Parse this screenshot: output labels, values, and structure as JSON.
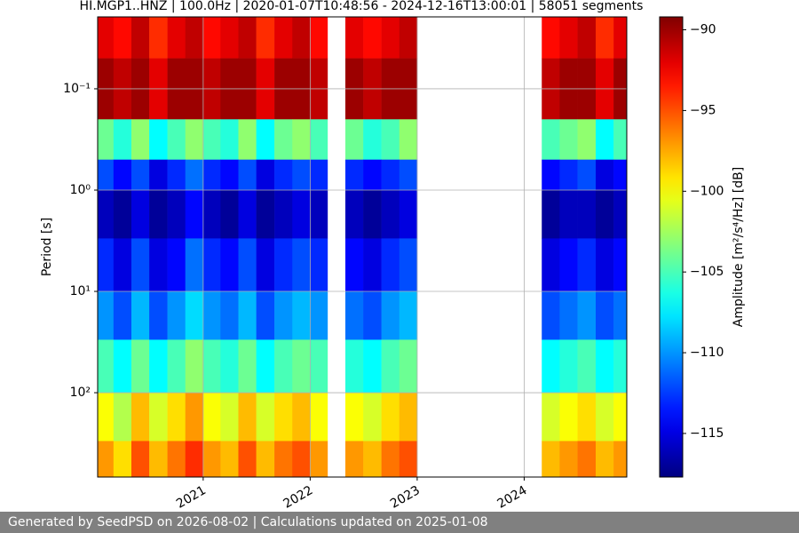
{
  "chart_data": {
    "type": "heatmap",
    "title": "HI.MGP1..HNZ | 100.0Hz | 2020-01-07T10:48:56 - 2024-12-16T13:00:01 | 58051 segments",
    "y_label": "Period [s]",
    "colorbar_label": "Amplitude [m²/s⁴/Hz] [dB]",
    "colormap": "jet",
    "yscale": "log",
    "grid": true,
    "xlim": [
      "2020-01-07",
      "2024-12-16"
    ],
    "xticks": [
      "2021",
      "2022",
      "2023",
      "2024"
    ],
    "ylim": [
      680,
      0.0195
    ],
    "yticks": [
      {
        "value": 0.1,
        "label": "10⁻¹"
      },
      {
        "value": 1,
        "label": "10⁰"
      },
      {
        "value": 10,
        "label": "10¹"
      },
      {
        "value": 100,
        "label": "10²"
      }
    ],
    "zlim": [
      -117.7,
      -89.2
    ],
    "zticks": [
      {
        "value": -90,
        "label": "−90"
      },
      {
        "value": -95,
        "label": "−95"
      },
      {
        "value": -100,
        "label": "−100"
      },
      {
        "value": -105,
        "label": "−105"
      },
      {
        "value": -110,
        "label": "−110"
      },
      {
        "value": -115,
        "label": "−115"
      }
    ],
    "x": [
      "2020-01",
      "2020-03",
      "2020-05",
      "2020-07",
      "2020-09",
      "2020-11",
      "2021-01",
      "2021-03",
      "2021-05",
      "2021-07",
      "2021-09",
      "2021-11",
      "2022-01",
      "2022-03",
      "2022-05",
      "2022-07",
      "2022-09",
      "2022-11",
      "2023-01",
      "2023-03",
      "2023-05",
      "2023-07",
      "2023-09",
      "2023-11",
      "2024-01",
      "2024-03",
      "2024-05",
      "2024-07",
      "2024-09",
      "2024-11",
      "2025-01"
    ],
    "y": [
      0.0195,
      0.05,
      0.2,
      0.5,
      1,
      3,
      10,
      30,
      100,
      300,
      680
    ],
    "z": [
      [
        -92,
        -93,
        -91,
        -94,
        -92,
        -91,
        -93,
        -92,
        -91,
        -94,
        -92,
        -91,
        -93,
        null,
        -92,
        -93,
        -92,
        -91,
        null,
        null,
        null,
        null,
        null,
        null,
        null,
        -93,
        -92,
        -91,
        -94,
        -92
      ],
      [
        -90,
        -91,
        -90,
        -92,
        -90,
        -90,
        -91,
        -90,
        -90,
        -92,
        -90,
        -90,
        -91,
        null,
        -90,
        -91,
        -90,
        -90,
        null,
        null,
        null,
        null,
        null,
        null,
        null,
        -91,
        -90,
        -90,
        -92,
        -90
      ],
      [
        -104,
        -106,
        -103,
        -107,
        -105,
        -103,
        -105,
        -106,
        -103,
        -107,
        -104,
        -103,
        -105,
        null,
        -104,
        -106,
        -105,
        -103,
        null,
        null,
        null,
        null,
        null,
        null,
        null,
        -105,
        -104,
        -103,
        -107,
        -105
      ],
      [
        -112,
        -114,
        -112,
        -115,
        -113,
        -111,
        -113,
        -114,
        -112,
        -115,
        -113,
        -112,
        -113,
        null,
        -113,
        -114,
        -113,
        -112,
        null,
        null,
        null,
        null,
        null,
        null,
        null,
        -114,
        -113,
        -112,
        -115,
        -114
      ],
      [
        -116,
        -117,
        -115,
        -117,
        -116,
        -114,
        -116,
        -117,
        -115,
        -117,
        -116,
        -115,
        -116,
        null,
        -116,
        -117,
        -116,
        -115,
        null,
        null,
        null,
        null,
        null,
        null,
        null,
        -117,
        -116,
        -116,
        -117,
        -116
      ],
      [
        -113,
        -115,
        -112,
        -115,
        -114,
        -111,
        -113,
        -114,
        -112,
        -115,
        -113,
        -112,
        -113,
        null,
        -114,
        -115,
        -113,
        -112,
        null,
        null,
        null,
        null,
        null,
        null,
        null,
        -115,
        -114,
        -113,
        -115,
        -114
      ],
      [
        -110,
        -112,
        -109,
        -112,
        -110,
        -108,
        -110,
        -111,
        -109,
        -112,
        -110,
        -109,
        -110,
        null,
        -111,
        -112,
        -110,
        -109,
        null,
        null,
        null,
        null,
        null,
        null,
        null,
        -112,
        -111,
        -110,
        -112,
        -111
      ],
      [
        -105,
        -107,
        -104,
        -107,
        -105,
        -103,
        -105,
        -106,
        -104,
        -107,
        -105,
        -104,
        -105,
        null,
        -106,
        -107,
        -105,
        -104,
        null,
        null,
        null,
        null,
        null,
        null,
        null,
        -107,
        -106,
        -105,
        -107,
        -106
      ],
      [
        -100,
        -102,
        -98,
        -101,
        -99,
        -97,
        -100,
        -101,
        -98,
        -101,
        -99,
        -98,
        -100,
        null,
        -100,
        -101,
        -99,
        -98,
        null,
        null,
        null,
        null,
        null,
        null,
        null,
        -101,
        -100,
        -99,
        -101,
        -100
      ],
      [
        -97,
        -99,
        -95,
        -98,
        -96,
        -94,
        -97,
        -98,
        -95,
        -98,
        -96,
        -95,
        -97,
        null,
        -97,
        -98,
        -96,
        -95,
        null,
        null,
        null,
        null,
        null,
        null,
        null,
        -98,
        -97,
        -96,
        -98,
        -97
      ]
    ]
  },
  "footer": "Generated by SeedPSD on 2026-08-02 | Calculations updated on 2025-01-08"
}
